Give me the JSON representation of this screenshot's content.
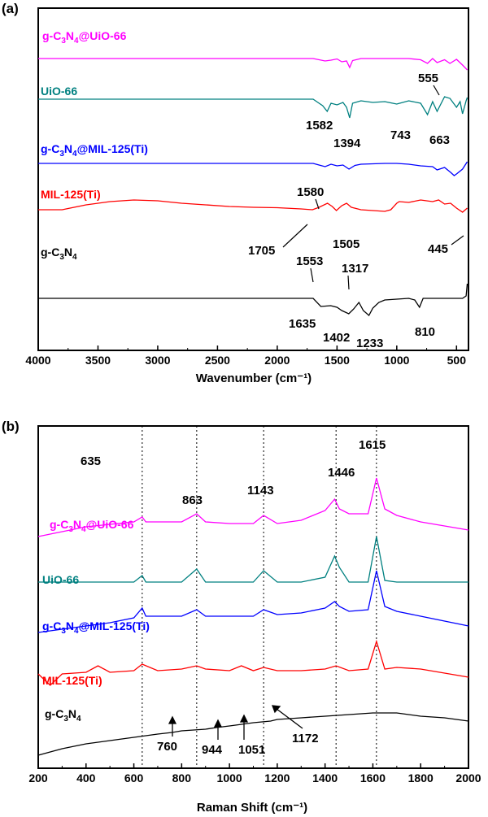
{
  "chart_data": [
    {
      "panel_label": "(a)",
      "type": "line",
      "xlabel": "Wavenumber (cm⁻¹)",
      "xlim": [
        4000,
        400
      ],
      "x_reversed": true,
      "xticks": [
        "4000",
        "3500",
        "3000",
        "2500",
        "2000",
        "1500",
        "1000",
        "500"
      ],
      "y_ticks_shown": false,
      "series": [
        {
          "name": "g-C₃N₄@UiO-66",
          "color": "#ff00ff",
          "x": [
            4000,
            3500,
            3000,
            2500,
            2000,
            1700,
            1600,
            1550,
            1500,
            1460,
            1420,
            1394,
            1370,
            1300,
            1200,
            1100,
            1000,
            900,
            800,
            743,
            700,
            663,
            600,
            555,
            500,
            450,
            410
          ],
          "y": [
            0.0,
            0.0,
            0.0,
            0.0,
            0.0,
            0.0,
            -0.6,
            -0.4,
            -0.1,
            -0.8,
            -0.6,
            -2.2,
            -0.5,
            0.0,
            0.0,
            0.0,
            0.0,
            0.0,
            -0.3,
            -1.2,
            0.0,
            -1.0,
            -0.3,
            -1.2,
            -0.2,
            -1.6,
            -2.8
          ]
        },
        {
          "name": "UiO-66",
          "color": "#008080",
          "x": [
            4000,
            3500,
            3000,
            2500,
            2000,
            1800,
            1700,
            1650,
            1620,
            1582,
            1550,
            1500,
            1450,
            1420,
            1394,
            1370,
            1300,
            1200,
            1100,
            1000,
            900,
            800,
            743,
            700,
            663,
            600,
            555,
            500,
            470,
            450,
            420,
            410
          ],
          "y": [
            0.0,
            0.0,
            0.0,
            0.0,
            0.0,
            0.0,
            0.0,
            -1.0,
            -1.6,
            -3.0,
            -1.0,
            -1.4,
            -0.8,
            -2.0,
            -4.6,
            -1.0,
            -0.4,
            -0.8,
            -0.6,
            -1.2,
            -0.4,
            -1.0,
            -3.8,
            -0.6,
            -3.0,
            0.6,
            0.2,
            -2.0,
            -0.6,
            -3.6,
            -0.4,
            0.4
          ]
        },
        {
          "name": "g-C₃N₄@MIL-125(Ti)",
          "color": "#0000ff",
          "x": [
            4000,
            3500,
            3000,
            2500,
            2000,
            1700,
            1650,
            1600,
            1550,
            1500,
            1450,
            1400,
            1350,
            1300,
            1200,
            1100,
            1000,
            900,
            800,
            700,
            663,
            600,
            550,
            520,
            500,
            450,
            410
          ],
          "y": [
            0.0,
            0.0,
            0.0,
            0.0,
            0.0,
            0.0,
            -0.4,
            -0.8,
            -0.2,
            -0.6,
            -0.4,
            -1.4,
            -0.5,
            -0.2,
            -0.1,
            0.0,
            0.0,
            -0.2,
            -0.6,
            -0.8,
            -1.6,
            -1.0,
            -2.2,
            -3.0,
            -2.6,
            -1.4,
            0.4
          ]
        },
        {
          "name": "MIL-125(Ti)",
          "color": "#ff0000",
          "x": [
            4000,
            3800,
            3600,
            3400,
            3200,
            3000,
            2800,
            2600,
            2400,
            2200,
            2000,
            1800,
            1705,
            1650,
            1580,
            1540,
            1505,
            1460,
            1420,
            1380,
            1300,
            1200,
            1100,
            1050,
            1000,
            980,
            900,
            800,
            700,
            650,
            600,
            550,
            500,
            450,
            410
          ],
          "y": [
            0.0,
            0.0,
            1.2,
            2.0,
            2.4,
            2.2,
            1.6,
            1.2,
            0.8,
            0.6,
            0.5,
            0.2,
            0.0,
            0.6,
            1.6,
            0.8,
            -0.2,
            1.0,
            1.6,
            0.6,
            0.0,
            -0.2,
            -0.4,
            0.0,
            1.6,
            2.0,
            1.8,
            2.4,
            2.0,
            2.4,
            1.4,
            1.6,
            0.4,
            -0.6,
            0.4
          ]
        },
        {
          "name": "g-C₃N₄",
          "color": "#000000",
          "x": [
            4000,
            3500,
            3000,
            2500,
            2200,
            2000,
            1800,
            1700,
            1635,
            1553,
            1500,
            1460,
            1402,
            1360,
            1317,
            1280,
            1233,
            1200,
            1150,
            1100,
            1000,
            900,
            850,
            810,
            780,
            700,
            600,
            500,
            450,
            420,
            410
          ],
          "y": [
            0.0,
            0.0,
            0.0,
            0.0,
            0.0,
            0.0,
            0.0,
            0.0,
            -2.0,
            -1.8,
            -2.2,
            -3.0,
            -3.8,
            -2.6,
            -1.0,
            -3.0,
            -4.2,
            -2.4,
            -1.0,
            -0.4,
            -0.2,
            0.0,
            -0.4,
            -2.2,
            0.0,
            0.0,
            0.0,
            0.0,
            0.0,
            0.6,
            3.6
          ]
        }
      ],
      "annotations": [
        "555",
        "1582",
        "1394",
        "743",
        "663",
        "1580",
        "1705",
        "1505",
        "445",
        "1553",
        "1317",
        "1635",
        "1402",
        "1233",
        "810"
      ]
    },
    {
      "panel_label": "(b)",
      "type": "line",
      "xlabel": "Raman Shift (cm⁻¹)",
      "xlim": [
        200,
        2000
      ],
      "xticks": [
        "200",
        "400",
        "600",
        "800",
        "1000",
        "1200",
        "1400",
        "1600",
        "1800",
        "2000"
      ],
      "y_ticks_shown": false,
      "reference_lines_x": [
        635,
        863,
        1143,
        1446,
        1615
      ],
      "series": [
        {
          "name": "g-C₃N₄@UiO-66",
          "color": "#ff00ff",
          "x": [
            200,
            400,
            600,
            635,
            650,
            800,
            863,
            900,
            1000,
            1100,
            1143,
            1200,
            1300,
            1400,
            1440,
            1460,
            1500,
            1580,
            1615,
            1650,
            1700,
            1800,
            2000
          ],
          "y": [
            0.0,
            1.2,
            1.8,
            2.4,
            1.8,
            1.8,
            2.8,
            1.8,
            1.6,
            1.6,
            2.6,
            1.6,
            2.0,
            3.2,
            4.6,
            3.4,
            2.8,
            2.8,
            7.2,
            3.4,
            2.6,
            1.8,
            0.8
          ]
        },
        {
          "name": "UiO-66",
          "color": "#008080",
          "x": [
            200,
            400,
            600,
            635,
            650,
            800,
            863,
            900,
            1000,
            1100,
            1143,
            1200,
            1300,
            1400,
            1440,
            1460,
            1500,
            1580,
            1615,
            1650,
            1700,
            1800,
            2000
          ],
          "y": [
            0.0,
            0.0,
            0.0,
            0.8,
            0.0,
            0.0,
            1.6,
            0.0,
            0.0,
            0.0,
            1.4,
            0.0,
            0.0,
            0.6,
            3.2,
            1.8,
            0.0,
            0.0,
            5.6,
            0.2,
            0.0,
            0.0,
            0.0
          ]
        },
        {
          "name": "g-C₃N₄@MIL-125(Ti)",
          "color": "#0000ff",
          "x": [
            200,
            300,
            400,
            500,
            600,
            635,
            650,
            800,
            863,
            900,
            1000,
            1100,
            1143,
            1200,
            1300,
            1400,
            1440,
            1460,
            1500,
            1580,
            1615,
            1650,
            1700,
            1800,
            2000
          ],
          "y": [
            0.0,
            0.4,
            0.8,
            1.2,
            1.8,
            3.0,
            2.0,
            2.0,
            2.8,
            2.0,
            2.0,
            2.0,
            2.8,
            2.2,
            2.4,
            3.0,
            3.8,
            3.2,
            2.6,
            2.8,
            7.6,
            3.2,
            2.6,
            2.0,
            0.8
          ]
        },
        {
          "name": "MIL-125(Ti)",
          "color": "#ff0000",
          "x": [
            200,
            250,
            300,
            400,
            450,
            500,
            600,
            635,
            700,
            800,
            863,
            900,
            1000,
            1050,
            1100,
            1143,
            1200,
            1300,
            1400,
            1446,
            1500,
            1580,
            1615,
            1650,
            1700,
            1800,
            2000
          ],
          "y": [
            0.6,
            -0.8,
            0.6,
            0.8,
            1.6,
            0.8,
            1.0,
            1.8,
            1.0,
            1.2,
            1.6,
            1.2,
            1.0,
            1.6,
            1.0,
            1.4,
            1.0,
            1.0,
            1.2,
            1.6,
            1.0,
            1.2,
            4.6,
            1.2,
            1.4,
            1.2,
            0.2
          ]
        },
        {
          "name": "g-C₃N₄",
          "color": "#000000",
          "x": [
            200,
            300,
            400,
            500,
            600,
            700,
            760,
            800,
            900,
            944,
            1000,
            1051,
            1100,
            1172,
            1200,
            1300,
            1400,
            1500,
            1600,
            1650,
            1700,
            1800,
            1900,
            2000
          ],
          "y": [
            -3.6,
            -2.8,
            -2.2,
            -1.8,
            -1.4,
            -1.0,
            -0.8,
            -0.6,
            -0.4,
            -0.2,
            0.0,
            0.2,
            0.4,
            0.6,
            0.8,
            1.0,
            1.2,
            1.4,
            1.6,
            1.6,
            1.6,
            1.2,
            1.0,
            0.6
          ]
        }
      ],
      "annotations": [
        "635",
        "863",
        "1143",
        "1446",
        "1615",
        "760",
        "944",
        "1051",
        "1172"
      ]
    }
  ]
}
